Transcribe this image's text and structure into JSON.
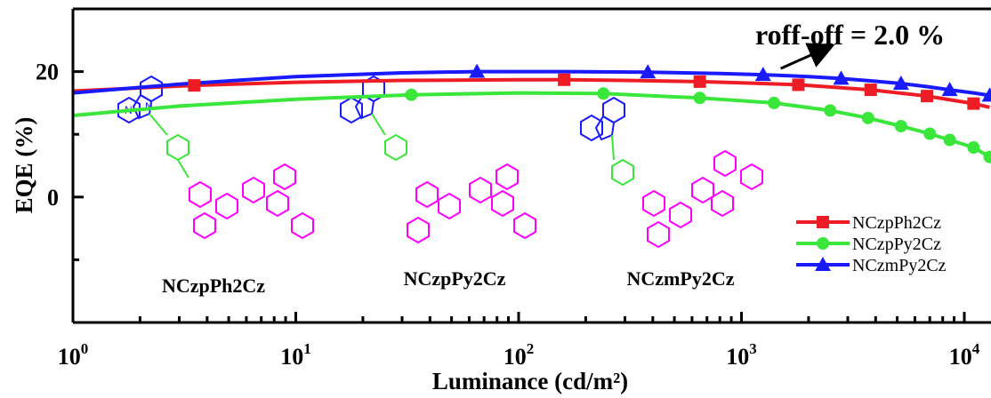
{
  "chart_data": {
    "type": "line",
    "xscale": "log",
    "xlabel": "Luminance (cd/m²)",
    "ylabel": "EQE (%)",
    "xlim": [
      1,
      13000
    ],
    "ylim": [
      -20,
      30
    ],
    "x_ticks": [
      {
        "value": 1,
        "base": "10",
        "exp": "0"
      },
      {
        "value": 10,
        "base": "10",
        "exp": "1"
      },
      {
        "value": 100,
        "base": "10",
        "exp": "2"
      },
      {
        "value": 1000,
        "base": "10",
        "exp": "3"
      },
      {
        "value": 10000,
        "base": "10",
        "exp": "4"
      }
    ],
    "y_ticks": [
      {
        "value": 0,
        "label": "0"
      },
      {
        "value": 20,
        "label": "20"
      }
    ],
    "y_minor_ticks": [
      -10,
      10
    ],
    "annotation": {
      "text": "roff-off = 2.0 %",
      "arrow_from": [
        1500,
        20.5
      ],
      "arrow_to": [
        2500,
        24.0
      ]
    },
    "legend_position": "right",
    "series": [
      {
        "name": "NCzpPh2Cz",
        "color": "#ee1c24",
        "marker": "square",
        "x": [
          1,
          3.5,
          10,
          30,
          100,
          160,
          300,
          650,
          1000,
          1800,
          3800,
          6800,
          11000,
          13000
        ],
        "y": [
          16.9,
          17.8,
          18.3,
          18.6,
          18.7,
          18.7,
          18.6,
          18.4,
          18.2,
          17.9,
          17.1,
          16.1,
          14.9,
          14.3
        ],
        "marker_x": [
          3.5,
          160,
          650,
          1800,
          3800,
          6800,
          11000
        ]
      },
      {
        "name": "NCzpPy2Cz",
        "color": "#39e639",
        "marker": "circle",
        "x": [
          1,
          3,
          10,
          33,
          100,
          240,
          650,
          1400,
          2500,
          3700,
          5200,
          7000,
          8600,
          11000,
          13000
        ],
        "y": [
          13.0,
          14.5,
          15.6,
          16.3,
          16.6,
          16.5,
          15.8,
          15.0,
          13.8,
          12.6,
          11.3,
          10.1,
          9.1,
          7.9,
          6.4
        ],
        "marker_x": [
          33,
          240,
          650,
          1400,
          2500,
          3700,
          5200,
          7000,
          8600,
          11000,
          13000
        ]
      },
      {
        "name": "NCzmPy2Cz",
        "color": "#1a1aff",
        "marker": "triangle",
        "x": [
          1,
          3,
          10,
          30,
          65,
          150,
          380,
          800,
          1250,
          2000,
          2800,
          3900,
          5200,
          6800,
          8600,
          11000,
          13000
        ],
        "y": [
          16.6,
          18.0,
          19.2,
          19.8,
          20.0,
          20.0,
          19.9,
          19.7,
          19.5,
          19.2,
          18.9,
          18.5,
          18.1,
          17.6,
          17.1,
          16.6,
          16.2
        ],
        "marker_x": [
          65,
          380,
          1250,
          2800,
          5200,
          8600,
          13000
        ]
      }
    ],
    "molecule_labels": [
      {
        "text": "NCzpPh2Cz",
        "color": "#ee1c24"
      },
      {
        "text": "NCzpPy2Cz",
        "color": "#39e639"
      },
      {
        "text": "NCzmPy2Cz",
        "color": "#1a1aff"
      }
    ]
  }
}
